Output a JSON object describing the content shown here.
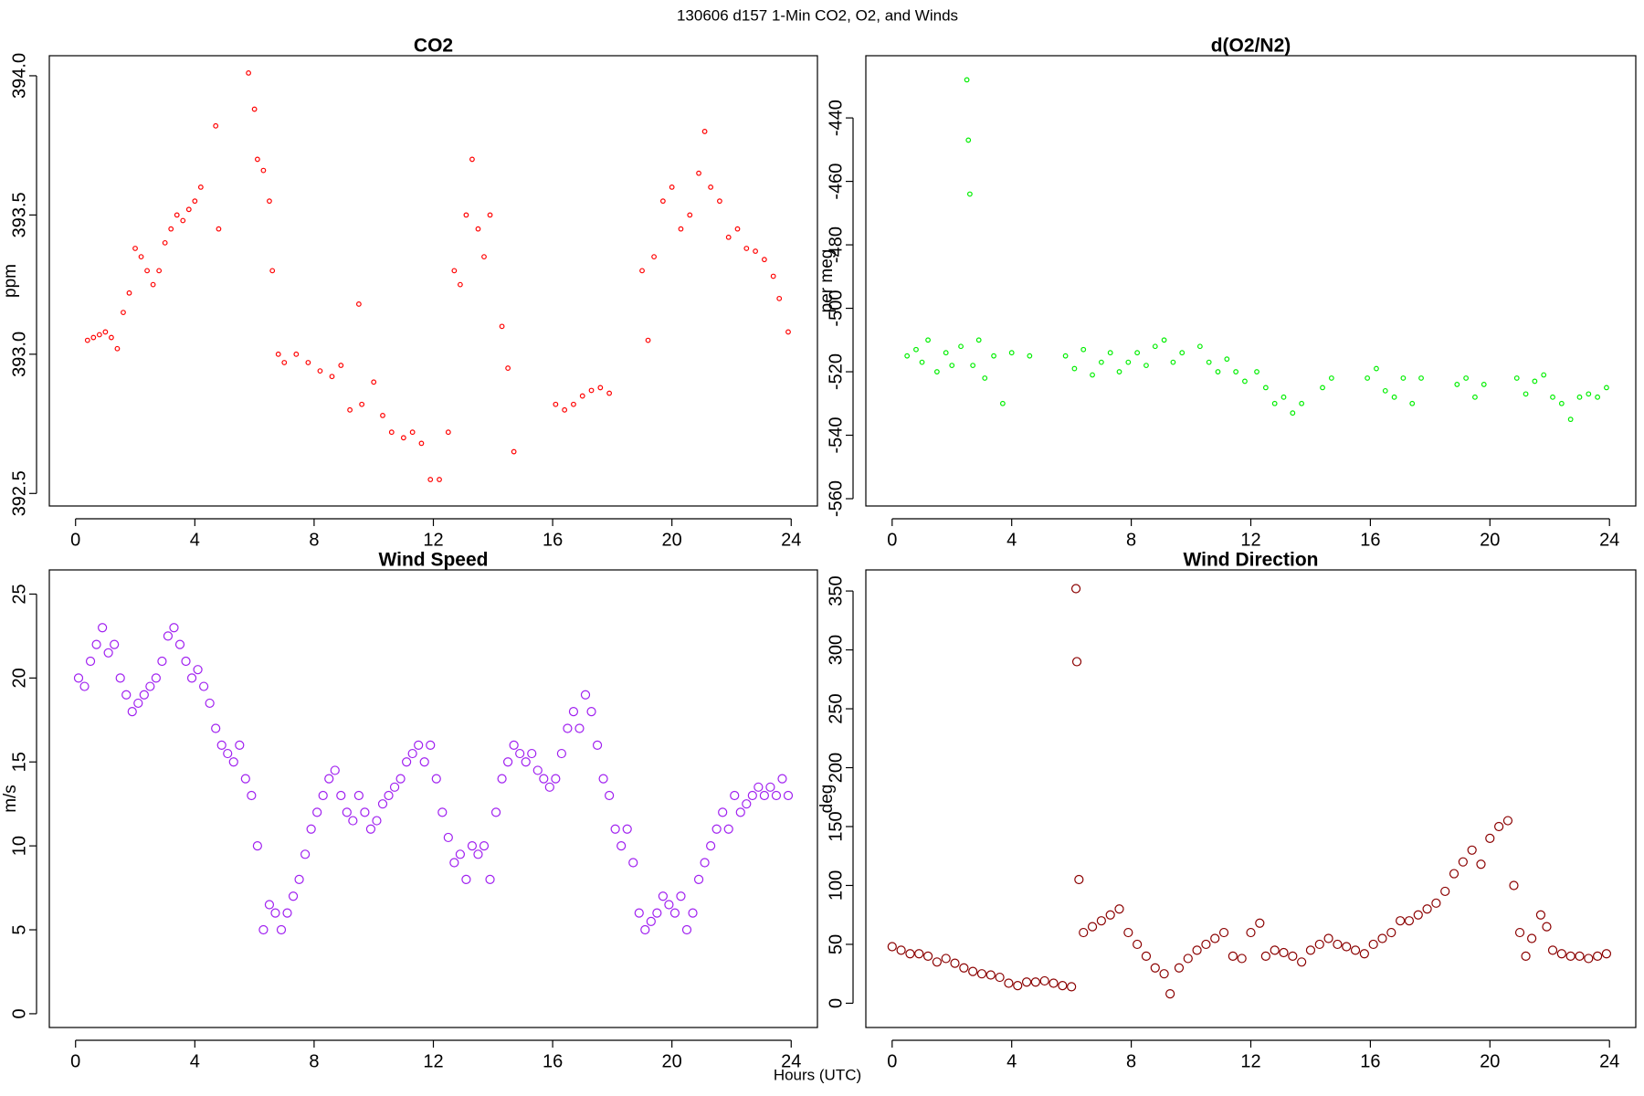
{
  "figure": {
    "title": "130606   d157   1-Min CO2, O2, and Winds",
    "xlabel": "Hours (UTC)"
  },
  "chart_data": [
    {
      "type": "scatter",
      "title": "CO2",
      "ylabel": "ppm",
      "color": "#ff0000",
      "xlim": [
        -0.88,
        24.88
      ],
      "xticks": [
        0,
        4,
        8,
        12,
        16,
        20,
        24
      ],
      "ylim": [
        392.455,
        394.072
      ],
      "yticks": [
        {
          "value": 392.5,
          "label": "392.5"
        },
        {
          "value": 393,
          "label": "393.0"
        },
        {
          "value": 393.5,
          "label": "393.5"
        },
        {
          "value": 394,
          "label": "394.0"
        }
      ],
      "x": [
        0.4,
        0.6,
        0.8,
        1.0,
        1.2,
        1.4,
        1.6,
        1.8,
        2.0,
        2.2,
        2.4,
        2.6,
        2.8,
        3.0,
        3.2,
        3.4,
        3.6,
        3.8,
        4.0,
        4.2,
        4.7,
        4.8,
        5.8,
        6.0,
        6.1,
        6.3,
        6.5,
        6.6,
        6.8,
        7.0,
        7.4,
        7.8,
        8.2,
        8.6,
        8.9,
        9.2,
        9.5,
        9.6,
        10.0,
        10.3,
        10.6,
        11.0,
        11.3,
        11.6,
        11.9,
        12.2,
        12.5,
        12.7,
        12.9,
        13.1,
        13.3,
        13.5,
        13.7,
        13.9,
        14.3,
        14.5,
        14.7,
        16.1,
        16.4,
        16.7,
        17.0,
        17.3,
        17.6,
        17.9,
        19.0,
        19.2,
        19.4,
        19.7,
        20.0,
        20.3,
        20.6,
        20.9,
        21.1,
        21.3,
        21.6,
        21.9,
        22.2,
        22.5,
        22.8,
        23.1,
        23.4,
        23.6,
        23.9
      ],
      "values": [
        393.05,
        393.06,
        393.07,
        393.08,
        393.06,
        393.02,
        393.15,
        393.22,
        393.38,
        393.35,
        393.3,
        393.25,
        393.3,
        393.4,
        393.45,
        393.5,
        393.48,
        393.52,
        393.55,
        393.6,
        393.82,
        393.45,
        394.01,
        393.88,
        393.7,
        393.66,
        393.55,
        393.3,
        393.0,
        392.97,
        393.0,
        392.97,
        392.94,
        392.92,
        392.96,
        392.8,
        393.18,
        392.82,
        392.9,
        392.78,
        392.72,
        392.7,
        392.72,
        392.68,
        392.55,
        392.55,
        392.72,
        393.3,
        393.25,
        393.5,
        393.7,
        393.45,
        393.35,
        393.5,
        393.1,
        392.95,
        392.65,
        392.82,
        392.8,
        392.82,
        392.85,
        392.87,
        392.88,
        392.86,
        393.3,
        393.05,
        393.35,
        393.55,
        393.6,
        393.45,
        393.5,
        393.65,
        393.8,
        393.6,
        393.55,
        393.42,
        393.45,
        393.38,
        393.37,
        393.34,
        393.28,
        393.2,
        393.08
      ]
    },
    {
      "type": "scatter",
      "title": "d(O2/N2)",
      "ylabel": "per meg",
      "color": "#00ee00",
      "xlim": [
        -0.88,
        24.88
      ],
      "xticks": [
        0,
        4,
        8,
        12,
        16,
        20,
        24
      ],
      "ylim": [
        -562.3,
        -420.4
      ],
      "yticks": [
        -560,
        -540,
        -520,
        -500,
        -480,
        -460,
        -440
      ],
      "x": [
        0.5,
        0.8,
        1.0,
        1.2,
        1.5,
        1.8,
        2.0,
        2.3,
        2.5,
        2.55,
        2.6,
        2.7,
        2.9,
        3.1,
        3.4,
        3.7,
        4.0,
        4.6,
        5.8,
        6.1,
        6.4,
        6.7,
        7.0,
        7.3,
        7.6,
        7.9,
        8.2,
        8.5,
        8.8,
        9.1,
        9.4,
        9.7,
        10.3,
        10.6,
        10.9,
        11.2,
        11.5,
        11.8,
        12.2,
        12.5,
        12.8,
        13.1,
        13.4,
        13.7,
        14.4,
        14.7,
        15.9,
        16.2,
        16.5,
        16.8,
        17.1,
        17.4,
        17.7,
        18.9,
        19.2,
        19.5,
        19.8,
        20.9,
        21.2,
        21.5,
        21.8,
        22.1,
        22.4,
        22.7,
        23.0,
        23.3,
        23.6,
        23.9
      ],
      "values": [
        -515,
        -513,
        -517,
        -510,
        -520,
        -514,
        -518,
        -512,
        -428,
        -447,
        -464,
        -518,
        -510,
        -522,
        -515,
        -530,
        -514,
        -515,
        -515,
        -519,
        -513,
        -521,
        -517,
        -514,
        -520,
        -517,
        -514,
        -518,
        -512,
        -510,
        -517,
        -514,
        -512,
        -517,
        -520,
        -516,
        -520,
        -523,
        -520,
        -525,
        -530,
        -528,
        -533,
        -530,
        -525,
        -522,
        -522,
        -519,
        -526,
        -528,
        -522,
        -530,
        -522,
        -524,
        -522,
        -528,
        -524,
        -522,
        -527,
        -523,
        -521,
        -528,
        -530,
        -535,
        -528,
        -527,
        -528,
        -525
      ]
    },
    {
      "type": "scatter",
      "title": "Wind Speed",
      "ylabel": "m/s",
      "color": "#a020f0",
      "xlim": [
        -0.88,
        24.88
      ],
      "xticks": [
        0,
        4,
        8,
        12,
        16,
        20,
        24
      ],
      "ylim": [
        -0.82,
        26.44
      ],
      "yticks": [
        0,
        5,
        10,
        15,
        20,
        25
      ],
      "x": [
        0.1,
        0.3,
        0.5,
        0.7,
        0.9,
        1.1,
        1.3,
        1.5,
        1.7,
        1.9,
        2.1,
        2.3,
        2.5,
        2.7,
        2.9,
        3.1,
        3.3,
        3.5,
        3.7,
        3.9,
        4.1,
        4.3,
        4.5,
        4.7,
        4.9,
        5.1,
        5.3,
        5.5,
        5.7,
        5.9,
        6.1,
        6.3,
        6.5,
        6.7,
        6.9,
        7.1,
        7.3,
        7.5,
        7.7,
        7.9,
        8.1,
        8.3,
        8.5,
        8.7,
        8.9,
        9.1,
        9.3,
        9.5,
        9.7,
        9.9,
        10.1,
        10.3,
        10.5,
        10.7,
        10.9,
        11.1,
        11.3,
        11.5,
        11.7,
        11.9,
        12.1,
        12.3,
        12.5,
        12.7,
        12.9,
        13.1,
        13.3,
        13.5,
        13.7,
        13.9,
        14.1,
        14.3,
        14.5,
        14.7,
        14.9,
        15.1,
        15.3,
        15.5,
        15.7,
        15.9,
        16.1,
        16.3,
        16.5,
        16.7,
        16.9,
        17.1,
        17.3,
        17.5,
        17.7,
        17.9,
        18.1,
        18.3,
        18.5,
        18.7,
        18.9,
        19.1,
        19.3,
        19.5,
        19.7,
        19.9,
        20.1,
        20.3,
        20.5,
        20.7,
        20.9,
        21.1,
        21.3,
        21.5,
        21.7,
        21.9,
        22.1,
        22.3,
        22.5,
        22.7,
        22.9,
        23.1,
        23.3,
        23.5,
        23.7,
        23.9
      ],
      "values": [
        20,
        19.5,
        21,
        22,
        23,
        21.5,
        22,
        20,
        19,
        18,
        18.5,
        19,
        19.5,
        20,
        21,
        22.5,
        23,
        22,
        21,
        20,
        20.5,
        19.5,
        18.5,
        17,
        16,
        15.5,
        15,
        16,
        14,
        13,
        10,
        5,
        6.5,
        6,
        5,
        6,
        7,
        8,
        9.5,
        11,
        12,
        13,
        14,
        14.5,
        13,
        12,
        11.5,
        13,
        12,
        11,
        11.5,
        12.5,
        13,
        13.5,
        14,
        15,
        15.5,
        16,
        15,
        16,
        14,
        12,
        10.5,
        9,
        9.5,
        8,
        10,
        9.5,
        10,
        8,
        12,
        14,
        15,
        16,
        15.5,
        15,
        15.5,
        14.5,
        14,
        13.5,
        14,
        15.5,
        17,
        18,
        17,
        19,
        18,
        16,
        14,
        13,
        11,
        10,
        11,
        9,
        6,
        5,
        5.5,
        6,
        7,
        6.5,
        6,
        7,
        5,
        6,
        8,
        9,
        10,
        11,
        12,
        11,
        13,
        12,
        12.5,
        13,
        13.5,
        13,
        13.5,
        13,
        14,
        13
      ]
    },
    {
      "type": "scatter",
      "title": "Wind Direction",
      "ylabel": "deg",
      "color": "#8b0000",
      "xlim": [
        -0.88,
        24.88
      ],
      "xticks": [
        0,
        4,
        8,
        12,
        16,
        20,
        24
      ],
      "ylim": [
        -20.6,
        367.9
      ],
      "yticks": [
        0,
        50,
        100,
        150,
        200,
        250,
        300,
        350
      ],
      "x": [
        0.0,
        0.3,
        0.6,
        0.9,
        1.2,
        1.5,
        1.8,
        2.1,
        2.4,
        2.7,
        3.0,
        3.3,
        3.6,
        3.9,
        4.2,
        4.5,
        4.8,
        5.1,
        5.4,
        5.7,
        6.0,
        6.15,
        6.18,
        6.25,
        6.4,
        6.7,
        7.0,
        7.3,
        7.6,
        7.9,
        8.2,
        8.5,
        8.8,
        9.1,
        9.3,
        9.6,
        9.9,
        10.2,
        10.5,
        10.8,
        11.1,
        11.4,
        11.7,
        12.0,
        12.3,
        12.5,
        12.8,
        13.1,
        13.4,
        13.7,
        14.0,
        14.3,
        14.6,
        14.9,
        15.2,
        15.5,
        15.8,
        16.1,
        16.4,
        16.7,
        17.0,
        17.3,
        17.6,
        17.9,
        18.2,
        18.5,
        18.8,
        19.1,
        19.4,
        19.7,
        20.0,
        20.3,
        20.6,
        20.8,
        21.0,
        21.2,
        21.4,
        21.7,
        21.9,
        22.1,
        22.4,
        22.7,
        23.0,
        23.3,
        23.6,
        23.9
      ],
      "values": [
        48,
        45,
        42,
        42,
        40,
        35,
        38,
        34,
        30,
        27,
        25,
        24,
        22,
        17,
        15,
        18,
        18,
        19,
        17,
        15,
        14,
        352,
        290,
        105,
        60,
        65,
        70,
        75,
        80,
        60,
        50,
        40,
        30,
        25,
        8,
        30,
        38,
        45,
        50,
        55,
        60,
        40,
        38,
        60,
        68,
        40,
        45,
        43,
        40,
        35,
        45,
        50,
        55,
        50,
        48,
        45,
        42,
        50,
        55,
        60,
        70,
        70,
        75,
        80,
        85,
        95,
        110,
        120,
        130,
        118,
        140,
        150,
        155,
        100,
        60,
        40,
        55,
        75,
        65,
        45,
        42,
        40,
        40,
        38,
        40,
        42
      ]
    }
  ]
}
